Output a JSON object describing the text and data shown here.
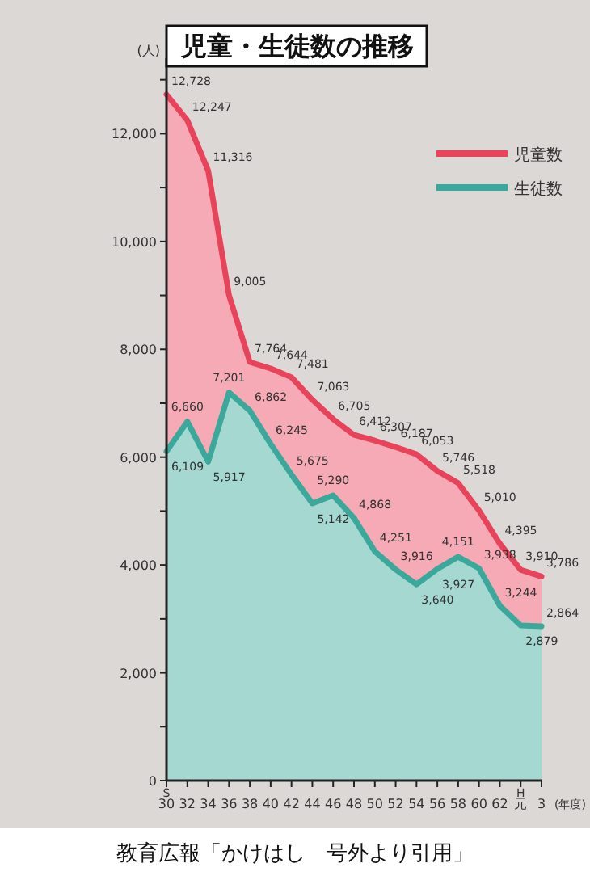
{
  "chart_data": {
    "type": "area",
    "title": "児童・生徒数の推移",
    "xlabel": "(年度)",
    "ylabel": "(人)",
    "categories": [
      "30",
      "32",
      "34",
      "36",
      "38",
      "40",
      "42",
      "44",
      "46",
      "48",
      "50",
      "52",
      "54",
      "56",
      "58",
      "60",
      "62",
      "元",
      "3"
    ],
    "series": [
      {
        "name": "児童数",
        "color": "#e8435a",
        "values": [
          12728,
          12247,
          11316,
          9005,
          7764,
          7644,
          7481,
          7063,
          6705,
          6412,
          6307,
          6187,
          6053,
          5746,
          5518,
          5010,
          4395,
          3910,
          3786
        ],
        "value_labels": [
          "12,728",
          "12,247",
          "11,316",
          "9,005",
          "7,764",
          "7,644",
          "7,481",
          "7,063",
          "6,705",
          "6,412",
          "6,307",
          "6,187",
          "6,053",
          "5,746",
          "5,518",
          "5,010",
          "4,395",
          "3,910",
          "3,786"
        ]
      },
      {
        "name": "生徒数",
        "color": "#3aa89a",
        "values": [
          6109,
          6660,
          5917,
          7201,
          6862,
          6245,
          5675,
          5142,
          5290,
          4868,
          4251,
          3916,
          3640,
          3927,
          4151,
          3938,
          3244,
          2879,
          2864
        ],
        "value_labels": [
          "6,109",
          "6,660",
          "5,917",
          "7,201",
          "6,862",
          "6,245",
          "5,675",
          "5,142",
          "5,290",
          "4,868",
          "4,251",
          "3,916",
          "3,640",
          "3,927",
          "4,151",
          "3,938",
          "3,244",
          "2,879",
          "2,864"
        ]
      }
    ],
    "ylim": [
      0,
      13400
    ],
    "yticks": [
      0,
      {
        "value": 1000,
        "label": null
      },
      {
        "value": 2000,
        "label": "2,000"
      },
      {
        "value": 3000,
        "label": null
      },
      {
        "value": 4000,
        "label": "4,000"
      },
      {
        "value": 5000,
        "label": null
      },
      {
        "value": 6000,
        "label": "6,000"
      },
      {
        "value": 7000,
        "label": null
      },
      {
        "value": 8000,
        "label": "8,000"
      },
      {
        "value": 9000,
        "label": null
      },
      {
        "value": 10000,
        "label": "10,000"
      },
      {
        "value": 11000,
        "label": null
      },
      {
        "value": 12000,
        "label": "12,000"
      },
      {
        "value": 13000,
        "label": null
      }
    ],
    "legend": "top right",
    "grid": false,
    "annotations": [
      "S",
      "H",
      "教育広報「かけはし　号外より引用」"
    ]
  }
}
